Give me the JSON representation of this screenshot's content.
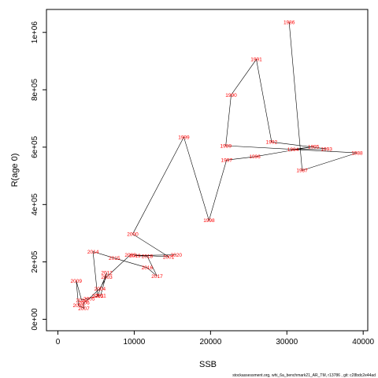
{
  "chart_data": {
    "type": "line",
    "xlabel": "SSB",
    "ylabel": "R(age 0)",
    "xlim": [
      -1500,
      40600
    ],
    "ylim": [
      -40000,
      1080000
    ],
    "x_ticks": [
      0,
      10000,
      20000,
      30000,
      40000
    ],
    "x_tick_labels": [
      "0",
      "10000",
      "20000",
      "30000",
      "40000"
    ],
    "y_ticks": [
      0,
      200000,
      400000,
      600000,
      800000,
      1000000
    ],
    "y_tick_labels": [
      "0e+00",
      "2e+05",
      "4e+05",
      "6e+05",
      "8e+05",
      "1e+06"
    ],
    "grid": false,
    "line_color": "#000000",
    "label_color": "#ff0000",
    "points": [
      {
        "year": "1986",
        "x": 30300,
        "y": 1035000
      },
      {
        "year": "1987",
        "x": 32000,
        "y": 519000
      },
      {
        "year": "1988",
        "x": 39200,
        "y": 580000
      },
      {
        "year": "1989",
        "x": 22000,
        "y": 605000
      },
      {
        "year": "1990",
        "x": 22700,
        "y": 782000
      },
      {
        "year": "1991",
        "x": 26000,
        "y": 906000
      },
      {
        "year": "1992",
        "x": 28000,
        "y": 618000
      },
      {
        "year": "1993",
        "x": 35200,
        "y": 594000
      },
      {
        "year": "1994",
        "x": 30800,
        "y": 592000
      },
      {
        "year": "1995",
        "x": 33500,
        "y": 602000
      },
      {
        "year": "1996",
        "x": 25800,
        "y": 567000
      },
      {
        "year": "1997",
        "x": 22100,
        "y": 555000
      },
      {
        "year": "1998",
        "x": 19800,
        "y": 345000
      },
      {
        "year": "1999",
        "x": 16500,
        "y": 635000
      },
      {
        "year": "2000",
        "x": 9800,
        "y": 297000
      },
      {
        "year": "2001",
        "x": 14500,
        "y": 218000
      },
      {
        "year": "2002",
        "x": 9500,
        "y": 225000
      },
      {
        "year": "2003",
        "x": 6400,
        "y": 148000
      },
      {
        "year": "2004",
        "x": 5500,
        "y": 107000
      },
      {
        "year": "2005",
        "x": 4100,
        "y": 72000
      },
      {
        "year": "2006",
        "x": 3400,
        "y": 58000
      },
      {
        "year": "2007",
        "x": 3400,
        "y": 38000
      },
      {
        "year": "2008",
        "x": 2700,
        "y": 49000
      },
      {
        "year": "2009",
        "x": 2400,
        "y": 134000
      },
      {
        "year": "2010",
        "x": 3100,
        "y": 67000
      },
      {
        "year": "2011",
        "x": 5600,
        "y": 83000
      },
      {
        "year": "2012",
        "x": 6400,
        "y": 162000
      },
      {
        "year": "2013",
        "x": 5200,
        "y": 82000
      },
      {
        "year": "2014",
        "x": 4600,
        "y": 236000
      },
      {
        "year": "2015",
        "x": 7400,
        "y": 213000
      },
      {
        "year": "2016",
        "x": 11700,
        "y": 180000
      },
      {
        "year": "2017",
        "x": 13000,
        "y": 150000
      },
      {
        "year": "2018",
        "x": 11700,
        "y": 220000
      },
      {
        "year": "2019",
        "x": 10100,
        "y": 222000
      },
      {
        "year": "2020",
        "x": 15500,
        "y": 225000
      }
    ]
  },
  "footer_text": "stockassessment.org,  whi_6a_benchmark21_AR_TM, r13786 ,  git: c28bdc2e44ad"
}
